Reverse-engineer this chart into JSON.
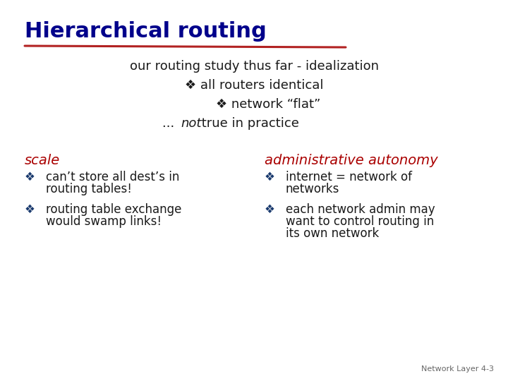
{
  "title": "Hierarchical routing",
  "title_color": "#00008b",
  "title_underline_color": "#b22222",
  "bg_color": "#ffffff",
  "intro_line1": "our routing study thus far - idealization",
  "intro_line2_bullet": "❖ all routers identical",
  "intro_line3_bullet": "❖ network “flat”",
  "intro_line4_prefix": "... ",
  "intro_line4_italic": "not",
  "intro_line4_rest": " true in practice",
  "intro_text_color": "#1a1a1a",
  "bullet_color_intro": "#1a3a6e",
  "section1_title": "scale",
  "section2_title": "administrative autonomy",
  "section_title_color": "#aa0000",
  "section1_bullets": [
    "can’t store all dest’s in\nrouting tables!",
    "routing table exchange\nwould swamp links!"
  ],
  "section2_bullets": [
    "internet = network of\nnetworks",
    "each network admin may\nwant to control routing in\nits own network"
  ],
  "body_text_color": "#1a1a1a",
  "bullet_color": "#1a3a6e",
  "footer_text": "Network Layer 4-3",
  "footer_color": "#666666",
  "title_fontsize": 22,
  "intro_fontsize": 13,
  "section_title_fontsize": 14,
  "body_fontsize": 12,
  "footer_fontsize": 8
}
